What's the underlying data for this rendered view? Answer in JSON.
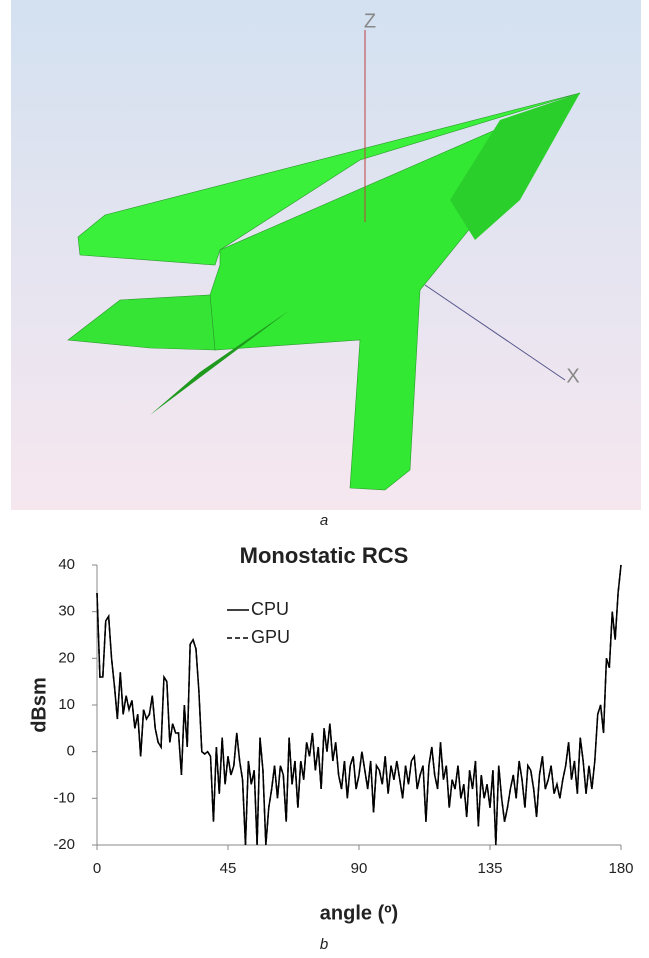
{
  "render": {
    "axis_z": "Z",
    "axis_x": "X",
    "caption": "a"
  },
  "chart_data": {
    "type": "line",
    "title": "Monostatic RCS",
    "x_label": "angle (º)",
    "y_label": "dBsm",
    "caption": "b",
    "x": [
      0,
      1,
      2,
      3,
      4,
      5,
      6,
      7,
      8,
      9,
      10,
      11,
      12,
      13,
      14,
      15,
      16,
      17,
      18,
      19,
      20,
      21,
      22,
      23,
      24,
      25,
      26,
      27,
      28,
      29,
      30,
      31,
      32,
      33,
      34,
      35,
      36,
      37,
      38,
      39,
      40,
      41,
      42,
      43,
      44,
      45,
      46,
      47,
      48,
      49,
      50,
      51,
      52,
      53,
      54,
      55,
      56,
      57,
      58,
      59,
      60,
      61,
      62,
      63,
      64,
      65,
      66,
      67,
      68,
      69,
      70,
      71,
      72,
      73,
      74,
      75,
      76,
      77,
      78,
      79,
      80,
      81,
      82,
      83,
      84,
      85,
      86,
      87,
      88,
      89,
      90,
      91,
      92,
      93,
      94,
      95,
      96,
      97,
      98,
      99,
      100,
      101,
      102,
      103,
      104,
      105,
      106,
      107,
      108,
      109,
      110,
      111,
      112,
      113,
      114,
      115,
      116,
      117,
      118,
      119,
      120,
      121,
      122,
      123,
      124,
      125,
      126,
      127,
      128,
      129,
      130,
      131,
      132,
      133,
      134,
      135,
      136,
      137,
      138,
      139,
      140,
      141,
      142,
      143,
      144,
      145,
      146,
      147,
      148,
      149,
      150,
      151,
      152,
      153,
      154,
      155,
      156,
      157,
      158,
      159,
      160,
      161,
      162,
      163,
      164,
      165,
      166,
      167,
      168,
      169,
      170,
      171,
      172,
      173,
      174,
      175,
      176,
      177,
      178,
      179,
      180
    ],
    "series": [
      {
        "name": "CPU",
        "color": "#000000",
        "dash": false,
        "values": [
          34,
          16,
          16,
          28,
          29,
          20,
          14,
          7,
          17,
          8,
          12,
          9,
          11,
          5,
          8,
          -1,
          9,
          7,
          8,
          12,
          5,
          2,
          1,
          16,
          15,
          2,
          6,
          4,
          4,
          -5,
          10,
          1,
          23,
          24,
          22,
          13,
          0,
          -0.5,
          0,
          -1,
          -15,
          1,
          -9,
          3,
          -7,
          -1,
          -5,
          -3,
          4,
          -2,
          -6,
          -20,
          -2,
          -7,
          -4,
          -20,
          3,
          -4,
          -20,
          -12,
          -8,
          -3,
          -10,
          -3,
          -5,
          -15,
          3,
          -7,
          -2,
          -12,
          -2,
          -6,
          2,
          -1,
          4,
          -4,
          1,
          -8,
          5,
          0,
          6,
          -2,
          2,
          -5,
          -8,
          -2,
          -10,
          -3,
          -1,
          -8,
          -5,
          0,
          -4,
          -8,
          -2,
          -13,
          -3,
          -4,
          -7,
          -1,
          -9,
          -3,
          -6,
          -2,
          -6,
          -10,
          -3,
          -7,
          -2,
          -1,
          -8,
          -5,
          -3,
          -15,
          -3,
          1,
          -5,
          -8,
          2,
          -6,
          -3,
          -12,
          -6,
          -8,
          -3,
          -10,
          -7,
          -14,
          -4,
          -8,
          -2,
          -16,
          -5,
          -10,
          -7,
          -12,
          -4,
          -20,
          -3,
          -10,
          -15,
          -12,
          -8,
          -5,
          -10,
          -2,
          -6,
          -12,
          -3,
          -4,
          -8,
          -14,
          -5,
          -1,
          -8,
          -6,
          -3,
          -9,
          -7,
          -10,
          -6,
          -3,
          2,
          -6,
          -2,
          -9,
          3,
          -2,
          -9,
          -3,
          -8,
          -2,
          8,
          10,
          4,
          20,
          18,
          30,
          24,
          34,
          40
        ]
      },
      {
        "name": "GPU",
        "color": "#000000",
        "dash": true,
        "values": [
          34,
          16,
          16,
          28,
          29,
          20,
          14,
          7,
          17,
          8,
          12,
          9,
          11,
          5,
          8,
          -1,
          9,
          7,
          8,
          12,
          5,
          2,
          1,
          16,
          15,
          2,
          6,
          4,
          4,
          -5,
          10,
          1,
          23,
          24,
          22,
          13,
          0,
          -0.5,
          0,
          -1,
          -15,
          1,
          -9,
          3,
          -7,
          -1,
          -5,
          -3,
          4,
          -2,
          -6,
          -20,
          -2,
          -7,
          -4,
          -20,
          3,
          -4,
          -20,
          -12,
          -8,
          -3,
          -10,
          -3,
          -5,
          -15,
          3,
          -7,
          -2,
          -12,
          -2,
          -6,
          2,
          -1,
          4,
          -4,
          1,
          -8,
          5,
          0,
          6,
          -2,
          2,
          -5,
          -8,
          -2,
          -10,
          -3,
          -1,
          -8,
          -5,
          0,
          -4,
          -8,
          -2,
          -13,
          -3,
          -4,
          -7,
          -1,
          -9,
          -3,
          -6,
          -2,
          -6,
          -10,
          -3,
          -7,
          -2,
          -1,
          -8,
          -5,
          -3,
          -15,
          -3,
          1,
          -5,
          -8,
          2,
          -6,
          -3,
          -12,
          -6,
          -8,
          -3,
          -10,
          -7,
          -14,
          -4,
          -8,
          -2,
          -16,
          -5,
          -10,
          -7,
          -12,
          -4,
          -20,
          -3,
          -10,
          -15,
          -12,
          -8,
          -5,
          -10,
          -2,
          -6,
          -12,
          -3,
          -4,
          -8,
          -14,
          -5,
          -1,
          -8,
          -6,
          -3,
          -9,
          -7,
          -10,
          -6,
          -3,
          2,
          -6,
          -2,
          -9,
          3,
          -2,
          -9,
          -3,
          -8,
          -2,
          8,
          10,
          4,
          20,
          18,
          30,
          24,
          34,
          40
        ]
      }
    ],
    "xlim": [
      0,
      180
    ],
    "xticks": [
      0,
      45,
      90,
      135,
      180
    ],
    "ylim": [
      -20,
      40
    ],
    "yticks": [
      -20,
      -10,
      0,
      10,
      20,
      30,
      40
    ],
    "grid": false,
    "legend": "upper-left"
  }
}
